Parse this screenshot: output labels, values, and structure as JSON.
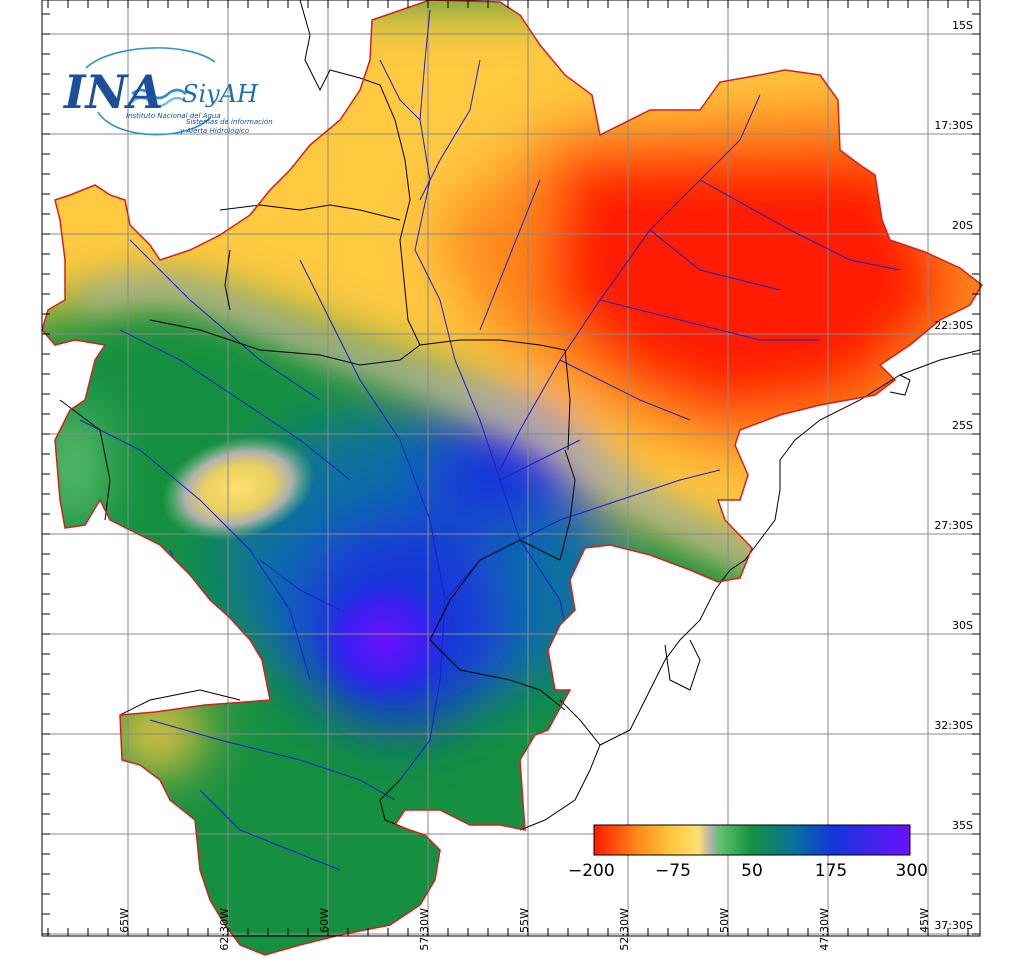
{
  "logo": {
    "ina": "INA",
    "siyah": "SiyAH",
    "institute": "Instituto Nacional del Agua",
    "system_line1": "Sistemas de información",
    "system_line2": "y Alerta Hidrológico"
  },
  "map": {
    "lat_labels": [
      "15S",
      "17:30S",
      "20S",
      "22:30S",
      "25S",
      "27:30S",
      "30S",
      "32:30S",
      "35S",
      "37:30S"
    ],
    "lon_labels": [
      "65W",
      "62:30W",
      "60W",
      "57:30W",
      "55W",
      "52:30W",
      "50W",
      "47:30W",
      "45W"
    ]
  },
  "colorbar": {
    "labels": [
      "−200",
      "−75",
      "50",
      "175",
      "300"
    ],
    "values": [
      -200,
      -75,
      50,
      175,
      300
    ],
    "stops": [
      {
        "value": -200,
        "color": "#ff1a00"
      },
      {
        "value": -130,
        "color": "#ff8a1a"
      },
      {
        "value": -75,
        "color": "#ffc940"
      },
      {
        "value": -35,
        "color": "#ffe070"
      },
      {
        "value": -15,
        "color": "#b0b0b0"
      },
      {
        "value": 0,
        "color": "#5ec26e"
      },
      {
        "value": 50,
        "color": "#149040"
      },
      {
        "value": 120,
        "color": "#0a6fa0"
      },
      {
        "value": 175,
        "color": "#1238d8"
      },
      {
        "value": 300,
        "color": "#6a10ff"
      }
    ]
  },
  "colors": {
    "border": "#d42020",
    "rivers": "#1c1cd0",
    "boundaries": "#000000",
    "grid": "#8a8a8a"
  }
}
